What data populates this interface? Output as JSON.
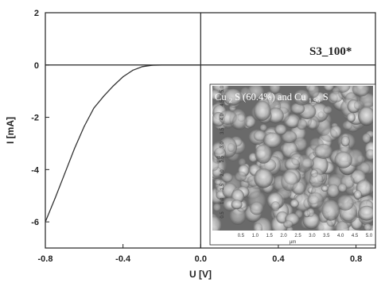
{
  "chart_data": {
    "type": "line",
    "xlabel": "U [V]",
    "ylabel": "I [mA]",
    "xlim": [
      -0.8,
      0.9
    ],
    "ylim": [
      -7,
      2
    ],
    "x_ticks": [
      "-0.8",
      "-0.4",
      "0.0",
      "0.4",
      "0.8"
    ],
    "y_ticks": [
      "2",
      "0",
      "-2",
      "-4",
      "-6"
    ],
    "annotation": "S3_100*",
    "series": [
      {
        "color": "#333333",
        "x": [
          -0.8,
          -0.75,
          -0.7,
          -0.65,
          -0.6,
          -0.55,
          -0.5,
          -0.45,
          -0.4,
          -0.35,
          -0.3,
          -0.25,
          -0.2,
          -0.15,
          -0.1,
          -0.05,
          0.0
        ],
        "y": [
          -6.0,
          -5.1,
          -4.15,
          -3.2,
          -2.35,
          -1.65,
          -1.2,
          -0.8,
          -0.45,
          -0.2,
          -0.06,
          -0.01,
          0.0,
          0.0,
          0.0,
          0.0,
          0.0
        ]
      }
    ],
    "inset": {
      "title_parts": [
        {
          "t": "Cu",
          "sub": false
        },
        {
          "t": "2",
          "sub": true
        },
        {
          "t": "S (60.4%) and Cu",
          "sub": false
        },
        {
          "t": "1.96",
          "sub": true
        },
        {
          "t": "S",
          "sub": false
        }
      ],
      "xlabel": "µm",
      "ylabel": "µm",
      "x_ticks": [
        "0.5",
        "1.0",
        "1.5",
        "2.0",
        "2.5",
        "3.0",
        "3.5",
        "4.0",
        "4.5",
        "5.0"
      ],
      "y_ticks": [
        "0.5",
        "1.0",
        "1.5",
        "2.0",
        "2.5",
        "3.0",
        "3.5",
        "4.0",
        "4.5",
        "5.0"
      ]
    }
  }
}
